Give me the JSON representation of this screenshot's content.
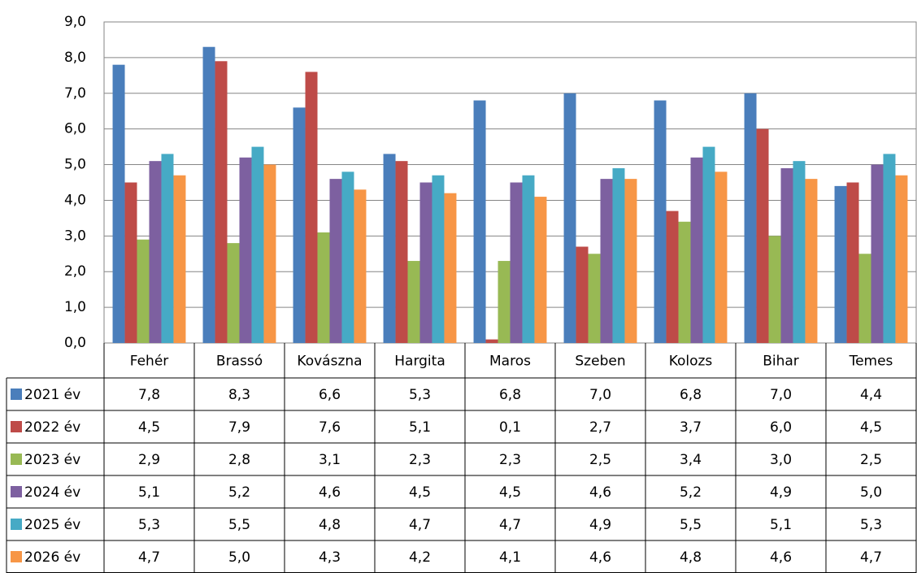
{
  "chart_data": {
    "type": "bar",
    "categories": [
      "Fehér",
      "Brassó",
      "Kovászna",
      "Hargita",
      "Maros",
      "Szeben",
      "Kolozs",
      "Bihar",
      "Temes"
    ],
    "series": [
      {
        "name": "2021 év",
        "color": "#4a7ebb",
        "values": [
          7.8,
          8.3,
          6.6,
          5.3,
          6.8,
          7.0,
          6.8,
          7.0,
          4.4
        ],
        "value_labels": [
          "7,8",
          "8,3",
          "6,6",
          "5,3",
          "6,8",
          "7,0",
          "6,8",
          "7,0",
          "4,4"
        ]
      },
      {
        "name": "2022 év",
        "color": "#be4b48",
        "values": [
          4.5,
          7.9,
          7.6,
          5.1,
          0.1,
          2.7,
          3.7,
          6.0,
          4.5
        ],
        "value_labels": [
          "4,5",
          "7,9",
          "7,6",
          "5,1",
          "0,1",
          "2,7",
          "3,7",
          "6,0",
          "4,5"
        ]
      },
      {
        "name": "2023 év",
        "color": "#98b954",
        "values": [
          2.9,
          2.8,
          3.1,
          2.3,
          2.3,
          2.5,
          3.4,
          3.0,
          2.5
        ],
        "value_labels": [
          "2,9",
          "2,8",
          "3,1",
          "2,3",
          "2,3",
          "2,5",
          "3,4",
          "3,0",
          "2,5"
        ]
      },
      {
        "name": "2024 év",
        "color": "#7d60a0",
        "values": [
          5.1,
          5.2,
          4.6,
          4.5,
          4.5,
          4.6,
          5.2,
          4.9,
          5.0
        ],
        "value_labels": [
          "5,1",
          "5,2",
          "4,6",
          "4,5",
          "4,5",
          "4,6",
          "5,2",
          "4,9",
          "5,0"
        ]
      },
      {
        "name": "2025 év",
        "color": "#46aac5",
        "values": [
          5.3,
          5.5,
          4.8,
          4.7,
          4.7,
          4.9,
          5.5,
          5.1,
          5.3
        ],
        "value_labels": [
          "5,3",
          "5,5",
          "4,8",
          "4,7",
          "4,7",
          "4,9",
          "5,5",
          "5,1",
          "5,3"
        ]
      },
      {
        "name": "2026 év",
        "color": "#f79646",
        "values": [
          4.7,
          5.0,
          4.3,
          4.2,
          4.1,
          4.6,
          4.8,
          4.6,
          4.7
        ],
        "value_labels": [
          "4,7",
          "5,0",
          "4,3",
          "4,2",
          "4,1",
          "4,6",
          "4,8",
          "4,6",
          "4,7"
        ]
      }
    ],
    "ylim": [
      0,
      9
    ],
    "yticks": [
      {
        "value": 0,
        "label": "0,0"
      },
      {
        "value": 1,
        "label": "1,0"
      },
      {
        "value": 2,
        "label": "2,0"
      },
      {
        "value": 3,
        "label": "3,0"
      },
      {
        "value": 4,
        "label": "4,0"
      },
      {
        "value": 5,
        "label": "5,0"
      },
      {
        "value": 6,
        "label": "6,0"
      },
      {
        "value": 7,
        "label": "7,0"
      },
      {
        "value": 8,
        "label": "8,0"
      },
      {
        "value": 9,
        "label": "9,0"
      }
    ],
    "grid": true
  }
}
